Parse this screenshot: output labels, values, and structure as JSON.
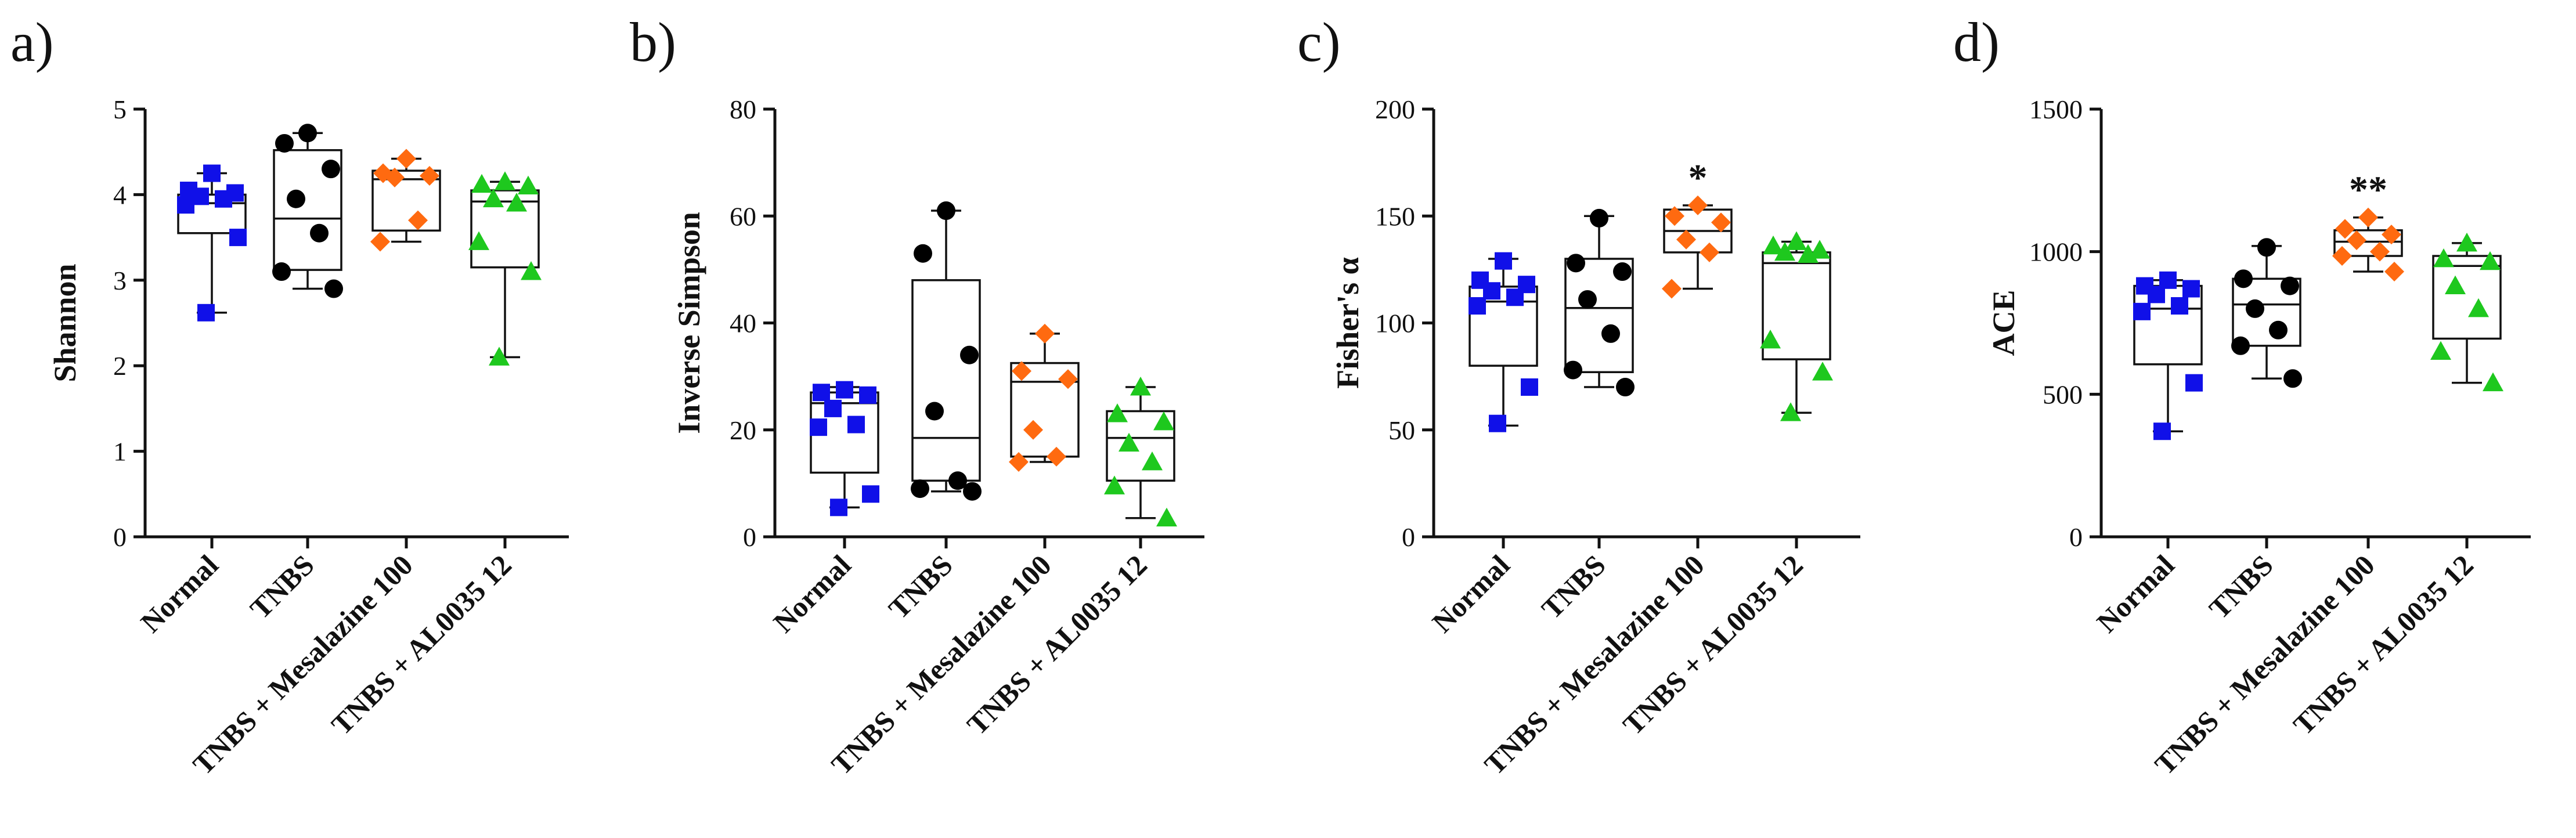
{
  "chart_data": [
    {
      "type": "box",
      "panel": "a)",
      "ylabel": "Shannon",
      "ylim": [
        0,
        5
      ],
      "yticks": [
        0,
        1,
        2,
        3,
        4,
        5
      ],
      "categories": [
        "Normal",
        "TNBS",
        "TNBS + Mesalazine 100",
        "TNBS + AL0035 12"
      ],
      "groups": [
        {
          "name": "Normal",
          "color": "#1010e8",
          "marker": "square",
          "whisker_low": 2.62,
          "q1": 3.55,
          "median": 3.9,
          "q3": 4.0,
          "whisker_high": 4.25,
          "points": [
            4.25,
            4.05,
            4.02,
            3.98,
            3.95,
            3.88,
            3.5,
            2.62
          ]
        },
        {
          "name": "TNBS",
          "color": "#000000",
          "marker": "circle",
          "whisker_low": 2.9,
          "q1": 3.12,
          "median": 3.72,
          "q3": 4.52,
          "whisker_high": 4.72,
          "points": [
            4.72,
            4.6,
            4.3,
            3.95,
            3.55,
            3.1,
            2.9
          ]
        },
        {
          "name": "TNBS + Mesalazine 100",
          "color": "#ff6a10",
          "marker": "diamond",
          "whisker_low": 3.45,
          "q1": 3.58,
          "median": 4.18,
          "q3": 4.28,
          "whisker_high": 4.42,
          "points": [
            4.42,
            4.25,
            4.22,
            4.2,
            3.7,
            3.45
          ]
        },
        {
          "name": "TNBS + AL0035 12",
          "color": "#1ec81e",
          "marker": "triangle",
          "whisker_low": 2.1,
          "q1": 3.15,
          "median": 3.92,
          "q3": 4.05,
          "whisker_high": 4.15,
          "points": [
            4.15,
            4.12,
            4.1,
            3.95,
            3.9,
            3.45,
            3.1,
            2.1
          ]
        }
      ],
      "significance": [
        "",
        "",
        "",
        ""
      ]
    },
    {
      "type": "box",
      "panel": "b)",
      "ylabel": "Inverse Simpson",
      "ylim": [
        0,
        80
      ],
      "yticks": [
        0,
        20,
        40,
        60,
        80
      ],
      "categories": [
        "Normal",
        "TNBS",
        "TNBS + Mesalazine 100",
        "TNBS + AL0035 12"
      ],
      "groups": [
        {
          "name": "Normal",
          "color": "#1010e8",
          "marker": "square",
          "whisker_low": 5.5,
          "q1": 12.0,
          "median": 25.0,
          "q3": 27.0,
          "whisker_high": 28.0,
          "points": [
            27.5,
            27.0,
            26.5,
            24.0,
            21.0,
            20.5,
            8.0,
            5.5
          ]
        },
        {
          "name": "TNBS",
          "color": "#000000",
          "marker": "circle",
          "whisker_low": 8.5,
          "q1": 10.5,
          "median": 18.5,
          "q3": 48.0,
          "whisker_high": 61.0,
          "points": [
            61.0,
            53.0,
            34.0,
            23.5,
            10.5,
            9.0,
            8.5
          ]
        },
        {
          "name": "TNBS + Mesalazine 100",
          "color": "#ff6a10",
          "marker": "diamond",
          "whisker_low": 14.0,
          "q1": 15.0,
          "median": 29.0,
          "q3": 32.5,
          "whisker_high": 38.0,
          "points": [
            38.0,
            31.0,
            29.5,
            20.0,
            15.0,
            14.0
          ]
        },
        {
          "name": "TNBS + AL0035 12",
          "color": "#1ec81e",
          "marker": "triangle",
          "whisker_low": 3.5,
          "q1": 10.5,
          "median": 18.5,
          "q3": 23.5,
          "whisker_high": 28.0,
          "points": [
            28.0,
            23.0,
            21.5,
            17.5,
            14.0,
            9.5,
            3.5
          ]
        }
      ],
      "significance": [
        "",
        "",
        "",
        ""
      ]
    },
    {
      "type": "box",
      "panel": "c)",
      "ylabel": "Fisher's α",
      "ylim": [
        0,
        200
      ],
      "yticks": [
        0,
        50,
        100,
        150,
        200
      ],
      "categories": [
        "Normal",
        "TNBS",
        "TNBS + Mesalazine 100",
        "TNBS + AL0035 12"
      ],
      "groups": [
        {
          "name": "Normal",
          "color": "#1010e8",
          "marker": "square",
          "whisker_low": 52,
          "q1": 80,
          "median": 110,
          "q3": 117,
          "whisker_high": 130,
          "points": [
            129,
            120,
            118,
            115,
            112,
            108,
            70,
            53
          ]
        },
        {
          "name": "TNBS",
          "color": "#000000",
          "marker": "circle",
          "whisker_low": 70,
          "q1": 77,
          "median": 107,
          "q3": 130,
          "whisker_high": 150,
          "points": [
            149,
            128,
            124,
            111,
            95,
            78,
            70
          ]
        },
        {
          "name": "TNBS + Mesalazine 100",
          "color": "#ff6a10",
          "marker": "diamond",
          "whisker_low": 116,
          "q1": 133,
          "median": 143,
          "q3": 153,
          "whisker_high": 155,
          "points": [
            155,
            150,
            147,
            139,
            133,
            116
          ]
        },
        {
          "name": "TNBS + AL0035 12",
          "color": "#1ec81e",
          "marker": "triangle",
          "whisker_low": 58,
          "q1": 83,
          "median": 128,
          "q3": 133,
          "whisker_high": 138,
          "points": [
            138,
            136,
            134,
            133,
            132,
            92,
            77,
            58
          ]
        }
      ],
      "significance": [
        "",
        "",
        "*",
        ""
      ]
    },
    {
      "type": "box",
      "panel": "d)",
      "ylabel": "ACE",
      "ylim": [
        0,
        1500
      ],
      "yticks": [
        0,
        500,
        1000,
        1500
      ],
      "categories": [
        "Normal",
        "TNBS",
        "TNBS + Mesalazine 100",
        "TNBS + AL0035 12"
      ],
      "groups": [
        {
          "name": "Normal",
          "color": "#1010e8",
          "marker": "square",
          "whisker_low": 370,
          "q1": 605,
          "median": 800,
          "q3": 880,
          "whisker_high": 900,
          "points": [
            900,
            880,
            870,
            850,
            810,
            790,
            540,
            370
          ]
        },
        {
          "name": "TNBS",
          "color": "#000000",
          "marker": "circle",
          "whisker_low": 555,
          "q1": 670,
          "median": 815,
          "q3": 905,
          "whisker_high": 1020,
          "points": [
            1015,
            905,
            880,
            800,
            725,
            670,
            555
          ]
        },
        {
          "name": "TNBS + Mesalazine 100",
          "color": "#ff6a10",
          "marker": "diamond",
          "whisker_low": 930,
          "q1": 985,
          "median": 1035,
          "q3": 1075,
          "whisker_high": 1120,
          "points": [
            1120,
            1080,
            1060,
            1040,
            1000,
            985,
            930
          ]
        },
        {
          "name": "TNBS + AL0035 12",
          "color": "#1ec81e",
          "marker": "triangle",
          "whisker_low": 540,
          "q1": 695,
          "median": 950,
          "q3": 985,
          "whisker_high": 1030,
          "points": [
            1030,
            975,
            965,
            880,
            800,
            650,
            540
          ]
        }
      ],
      "significance": [
        "",
        "",
        "**",
        ""
      ]
    }
  ]
}
